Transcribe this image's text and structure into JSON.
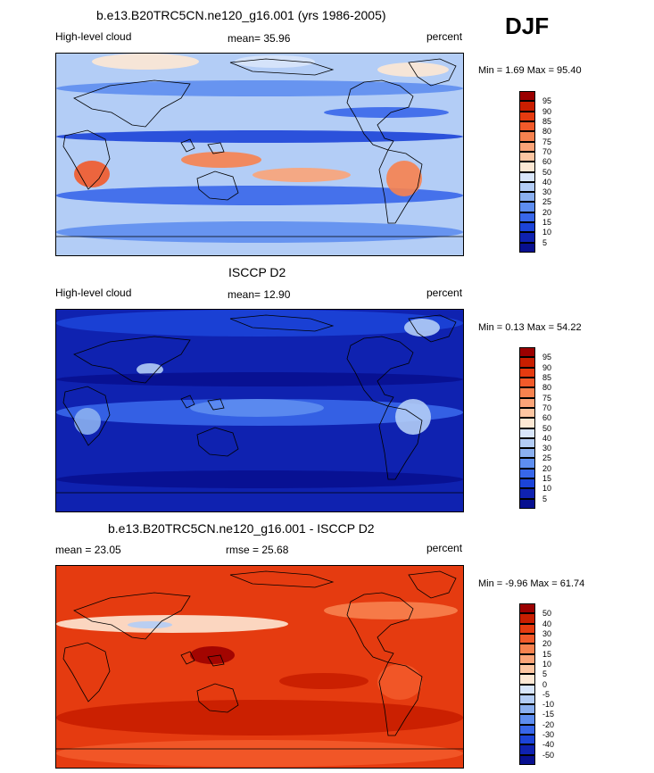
{
  "season": "DJF",
  "panels": [
    {
      "id": "model",
      "title": "b.e13.B20TRC5CN.ne120_g16.001 (yrs 1986-2005)",
      "left_label": "High-level cloud",
      "center_label": "mean=  35.96",
      "right_label": "percent",
      "minmax": "Min =   1.69 Max =  95.40",
      "colorbar_labels": [
        "95",
        "90",
        "85",
        "80",
        "75",
        "70",
        "60",
        "50",
        "40",
        "30",
        "25",
        "20",
        "15",
        "10",
        "5"
      ],
      "colors": [
        "#9b0000",
        "#c81e00",
        "#e53b10",
        "#f25a2a",
        "#f7824f",
        "#fba478",
        "#fdc6a2",
        "#fde8d4",
        "#d8e6fb",
        "#b3cdf6",
        "#8bb0f0",
        "#5e8ef0",
        "#3867ea",
        "#1c44d8",
        "#0f22b0",
        "#081090"
      ],
      "field": "model"
    },
    {
      "id": "obs",
      "title": "ISCCP D2",
      "left_label": "High-level cloud",
      "center_label": "mean=  12.90",
      "right_label": "percent",
      "minmax": "Min =   0.13 Max =  54.22",
      "colorbar_labels": [
        "95",
        "90",
        "85",
        "80",
        "75",
        "70",
        "60",
        "50",
        "40",
        "30",
        "25",
        "20",
        "15",
        "10",
        "5"
      ],
      "colors": [
        "#9b0000",
        "#c81e00",
        "#e53b10",
        "#f25a2a",
        "#f7824f",
        "#fba478",
        "#fdc6a2",
        "#fde8d4",
        "#d8e6fb",
        "#b3cdf6",
        "#8bb0f0",
        "#5e8ef0",
        "#3867ea",
        "#1c44d8",
        "#0f22b0",
        "#081090"
      ],
      "field": "obs"
    },
    {
      "id": "diff",
      "title": "b.e13.B20TRC5CN.ne120_g16.001 - ISCCP D2",
      "left_label": "mean =  23.05",
      "center_label": "rmse =  25.68",
      "right_label": "percent",
      "minmax": "Min =  -9.96 Max =  61.74",
      "colorbar_labels": [
        "50",
        "40",
        "30",
        "20",
        "15",
        "10",
        "5",
        "0",
        "-5",
        "-10",
        "-15",
        "-20",
        "-30",
        "-40",
        "-50"
      ],
      "colors": [
        "#9b0000",
        "#c81e00",
        "#e53b10",
        "#f25a2a",
        "#f7824f",
        "#fba478",
        "#fdc6a2",
        "#fde8d4",
        "#d8e6fb",
        "#b3cdf6",
        "#8bb0f0",
        "#5e8ef0",
        "#3867ea",
        "#1c44d8",
        "#0f22b0",
        "#081090"
      ],
      "field": "diff"
    }
  ]
}
